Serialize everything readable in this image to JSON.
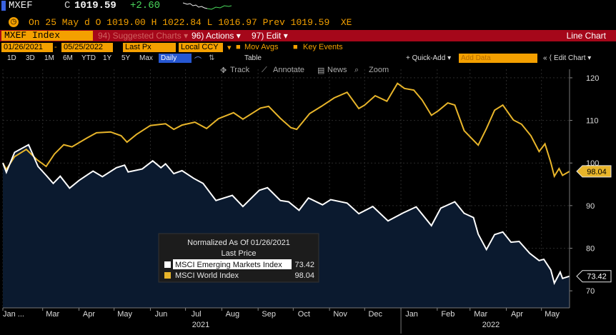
{
  "header": {
    "ticker": "MXEF",
    "c_label": "C",
    "price": "1019.59",
    "change": "+2.60",
    "ohlc_line": "On 25 May d O 1019.00 H 1022.84 L 1016.97 Prev 1019.59  XE"
  },
  "command_bar": {
    "field": "MXEF Index",
    "suggested": "94) Suggested Charts ▾",
    "actions": "96) Actions ▾",
    "edit": "97) Edit ▾",
    "title": "Line Chart"
  },
  "options": {
    "start_date": "01/26/2021",
    "end_date": "05/25/2022",
    "price_type": "Last Px",
    "currency": "Local CCY",
    "mov_avgs": "Mov Avgs",
    "key_events": "Key Events"
  },
  "periods": [
    "1D",
    "3D",
    "1M",
    "6M",
    "YTD",
    "1Y",
    "5Y",
    "Max"
  ],
  "frequency": "Daily",
  "table_label": "Table",
  "quick_add": "+ Quick-Add ▾",
  "add_data_placeholder": "Add Data",
  "edit_chart": "Edit Chart",
  "toolbar": {
    "track": "Track",
    "annotate": "Annotate",
    "news": "News",
    "zoom": "Zoom"
  },
  "legend": {
    "title": "Normalized As Of 01/26/2021",
    "subtitle": "Last Price"
  },
  "colors": {
    "accent": "#f4a000",
    "world": "#e8b52a",
    "em": "#ffffff",
    "em_fill": "#0b1a2f",
    "command_bar": "#a5071a"
  },
  "chart_data": {
    "type": "line",
    "x_ticks": [
      "Jan ...",
      "Mar",
      "Apr",
      "May",
      "Jun",
      "Jul",
      "Aug",
      "Sep",
      "Oct",
      "Nov",
      "Dec",
      "Jan",
      "Feb",
      "Mar",
      "Apr",
      "May"
    ],
    "x_years": [
      "2021",
      "2022"
    ],
    "ylim": [
      66,
      122
    ],
    "y_ticks": [
      70,
      80,
      90,
      100,
      110,
      120
    ],
    "y_axis_side": "right",
    "grid": true,
    "legend_position": "bottom-left inside plot",
    "series": [
      {
        "name": "MSCI World Index",
        "last_value": 98.04,
        "color": "#e8b52a",
        "x": [
          "2021-01-26",
          "2021-01-29",
          "2021-02-05",
          "2021-02-15",
          "2021-02-24",
          "2021-03-04",
          "2021-03-11",
          "2021-03-19",
          "2021-03-26",
          "2021-04-08",
          "2021-04-16",
          "2021-04-28",
          "2021-05-07",
          "2021-05-12",
          "2021-05-20",
          "2021-06-01",
          "2021-06-14",
          "2021-06-21",
          "2021-06-28",
          "2021-07-09",
          "2021-07-19",
          "2021-07-29",
          "2021-08-11",
          "2021-08-19",
          "2021-09-03",
          "2021-09-10",
          "2021-09-20",
          "2021-09-29",
          "2021-10-04",
          "2021-10-15",
          "2021-10-25",
          "2021-11-05",
          "2021-11-16",
          "2021-11-26",
          "2021-12-01",
          "2021-12-10",
          "2021-12-20",
          "2021-12-29",
          "2022-01-04",
          "2022-01-12",
          "2022-01-19",
          "2022-01-27",
          "2022-02-02",
          "2022-02-10",
          "2022-02-16",
          "2022-02-24",
          "2022-03-08",
          "2022-03-15",
          "2022-03-22",
          "2022-03-29",
          "2022-04-07",
          "2022-04-14",
          "2022-04-22",
          "2022-04-29",
          "2022-05-04",
          "2022-05-09",
          "2022-05-12",
          "2022-05-16",
          "2022-05-19",
          "2022-05-25"
        ],
        "y": [
          100,
          98.5,
          101.5,
          103.2,
          100.8,
          99.2,
          102.1,
          104.3,
          103.8,
          105.9,
          107.1,
          107.3,
          106.4,
          104.9,
          106.7,
          108.8,
          109.2,
          107.9,
          108.9,
          109.6,
          108.1,
          110.4,
          111.8,
          110.3,
          112.9,
          113.3,
          110.5,
          108.3,
          107.9,
          111.6,
          113.3,
          115.3,
          116.6,
          112.8,
          113.6,
          115.8,
          114.5,
          118.7,
          117.5,
          117.1,
          114.8,
          111.2,
          112.3,
          114.1,
          113.6,
          107.6,
          104.2,
          108.1,
          112.4,
          113.6,
          110.1,
          109.1,
          106.4,
          102.7,
          104.5,
          100.1,
          96.9,
          98.7,
          97.1,
          98.04
        ]
      },
      {
        "name": "MSCI Emerging Markets Index",
        "last_value": 73.42,
        "color": "#ffffff",
        "x": [
          "2021-01-26",
          "2021-01-29",
          "2021-02-05",
          "2021-02-17",
          "2021-02-25",
          "2021-03-04",
          "2021-03-10",
          "2021-03-16",
          "2021-03-24",
          "2021-04-01",
          "2021-04-13",
          "2021-04-21",
          "2021-05-03",
          "2021-05-10",
          "2021-05-13",
          "2021-05-25",
          "2021-06-03",
          "2021-06-10",
          "2021-06-14",
          "2021-06-21",
          "2021-06-28",
          "2021-07-08",
          "2021-07-16",
          "2021-07-27",
          "2021-08-10",
          "2021-08-19",
          "2021-09-02",
          "2021-09-09",
          "2021-09-20",
          "2021-09-27",
          "2021-10-06",
          "2021-10-14",
          "2021-10-26",
          "2021-11-02",
          "2021-11-16",
          "2021-11-26",
          "2021-12-08",
          "2021-12-21",
          "2022-01-03",
          "2022-01-14",
          "2022-01-27",
          "2022-02-04",
          "2022-02-16",
          "2022-02-24",
          "2022-03-04",
          "2022-03-08",
          "2022-03-15",
          "2022-03-22",
          "2022-03-29",
          "2022-04-05",
          "2022-04-12",
          "2022-04-21",
          "2022-04-29",
          "2022-05-03",
          "2022-05-09",
          "2022-05-12",
          "2022-05-17",
          "2022-05-19",
          "2022-05-25"
        ],
        "y": [
          100,
          97.8,
          102.5,
          104.3,
          99.2,
          97.1,
          95.2,
          96.9,
          94.1,
          95.9,
          98.1,
          96.8,
          98.9,
          99.5,
          97.9,
          98.6,
          100.5,
          98.9,
          99.8,
          97.5,
          98.2,
          96.4,
          95.2,
          91.2,
          92.4,
          89.8,
          93.6,
          94.2,
          91.2,
          90.9,
          88.9,
          91.8,
          90.2,
          91.4,
          90.6,
          88.1,
          89.8,
          86.4,
          88.3,
          89.7,
          85.3,
          89.4,
          90.9,
          88.2,
          87.2,
          83.3,
          79.7,
          83.2,
          83.8,
          81.4,
          81.6,
          78.8,
          77.1,
          77.4,
          74.9,
          71.8,
          74.4,
          72.9,
          73.42
        ]
      }
    ]
  }
}
